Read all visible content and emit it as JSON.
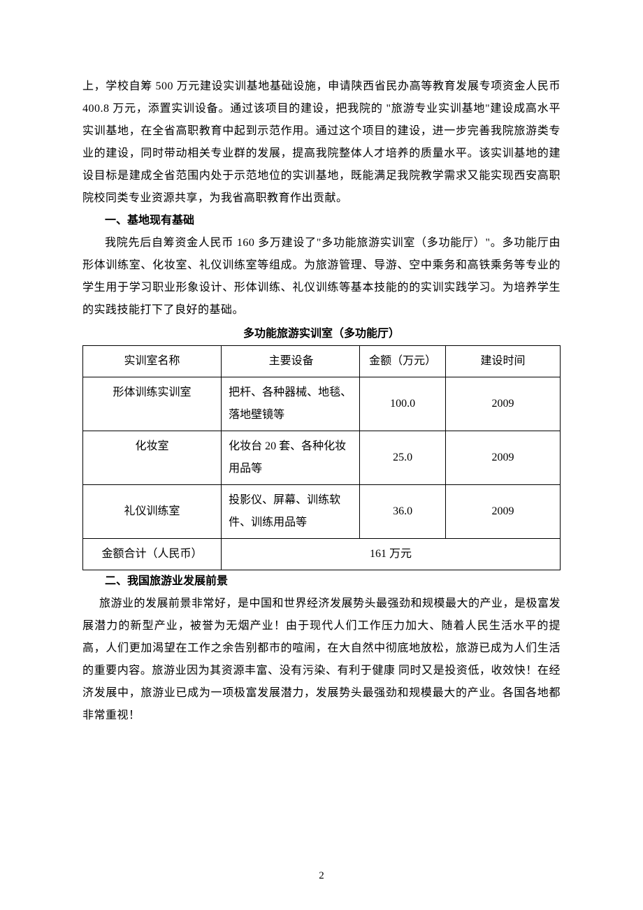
{
  "para1": "上，学校自筹 500 万元建设实训基地基础设施，申请陕西省民办高等教育发展专项资金人民币 400.8 万元，添置实训设备。通过该项目的建设，把我院的 \"旅游专业实训基地\"建设成高水平实训基地，在全省高职教育中起到示范作用。通过这个项目的建设，进一步完善我院旅游类专业的建设，同时带动相关专业群的发展，提高我院整体人才培养的质量水平。该实训基地的建设目标是建成全省范围内处于示范地位的实训基地，既能满足我院教学需求又能实现西安高职院校同类专业资源共享，为我省高职教育作出贡献。",
  "heading1": "一、基地现有基础",
  "para2": "我院先后自筹资金人民币 160 多万建设了\"多功能旅游实训室（多功能厅）\"。多功能厅由形体训练室、化妆室、礼仪训练室等组成。为旅游管理、导游、空中乘务和高铁乘务等专业的学生用于学习职业形象设计、形体训练、礼仪训练等基本技能的的实训实践学习。为培养学生的实践技能打下了良好的基础。",
  "table": {
    "caption": "多功能旅游实训室（多功能厅）",
    "headers": [
      "实训室名称",
      "主要设备",
      "金额（万元）",
      "建设时间"
    ],
    "rows": [
      {
        "name": "形体训练实训室",
        "equip": "把杆、各种器械、地毯、落地壁镜等",
        "amount": "100.0",
        "year": "2009"
      },
      {
        "name": "化妆室",
        "equip": "化妆台 20 套、各种化妆用品等",
        "amount": "25.0",
        "year": "2009"
      },
      {
        "name": "礼仪训练室",
        "equip": "投影仪、屏幕、训练软件、训练用品等",
        "amount": "36.0",
        "year": "2009"
      }
    ],
    "total_label": "金额合计（人民币）",
    "total_value": "161 万元"
  },
  "heading2": "二、我国旅游业发展前景",
  "para3": "旅游业的发展前景非常好，是中国和世界经济发展势头最强劲和规模最大的产业，是极富发展潜力的新型产业，被誉为无烟产业！由于现代人们工作压力加大、随着人民生活水平的提高，人们更加渴望在工作之余告别都市的喧闹，在大自然中彻底地放松，旅游已成为人们生活的重要内容。旅游业因为其资源丰富、没有污染、有利于健康 同时又是投资低，收效快！在经济发展中，旅游业已成为一项极富发展潜力，发展势头最强劲和规模最大的产业。各国各地都非常重视！",
  "page": "2"
}
